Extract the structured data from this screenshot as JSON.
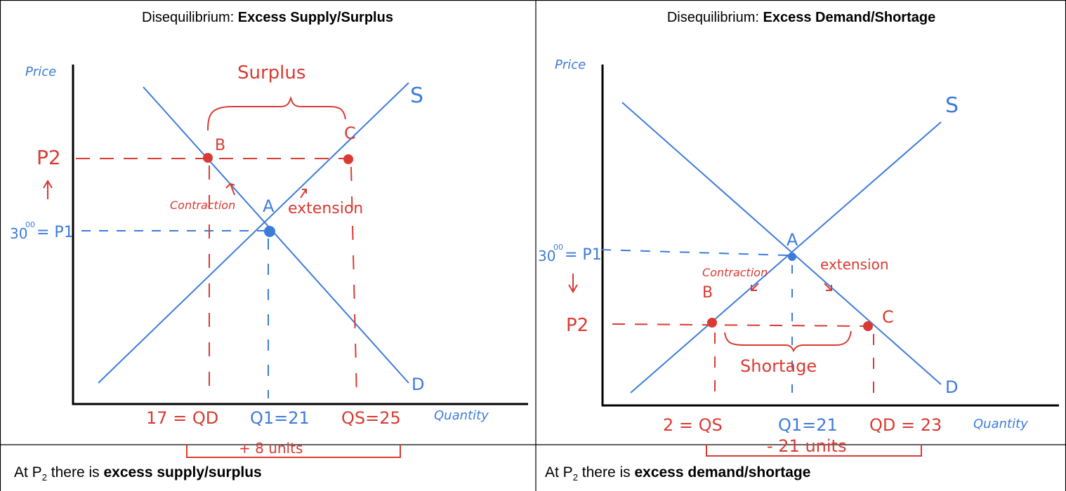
{
  "colors": {
    "curve": "#3d7bd9",
    "annotation": "#d93a32",
    "axis": "#000000"
  },
  "left": {
    "title_prefix": "Disequilibrium: ",
    "title_bold": "Excess Supply/Surplus",
    "axis_y": "Price",
    "axis_x": "Quantity",
    "supply_label": "S",
    "demand_label": "D",
    "point_a": "A",
    "point_b": "B",
    "point_c": "C",
    "p2_label": "P2",
    "p1_label": "30",
    "p1_sup": "00",
    "p1_eq": "= P1",
    "bracket_label": "Surplus",
    "contraction": "Contraction",
    "extension": "extension",
    "qd_label": "17 = QD",
    "q1_label": "Q1=21",
    "qs_label": "QS=25",
    "units_label": "+ 8 units",
    "conclusion_prefix": "At P",
    "conclusion_sub": "2",
    "conclusion_mid": " there is ",
    "conclusion_bold": "excess supply/surplus"
  },
  "right": {
    "title_prefix": "Disequilibrium: ",
    "title_bold": "Excess Demand/Shortage",
    "axis_y": "Price",
    "axis_x": "Quantity",
    "supply_label": "S",
    "demand_label": "D",
    "point_a": "A",
    "point_b": "B",
    "point_c": "C",
    "p2_label": "P2",
    "p1_label": "30",
    "p1_sup": "00",
    "p1_eq": "= P1",
    "bracket_label": "Shortage",
    "contraction": "Contraction",
    "extension": "extension",
    "qs_label": "2 = QS",
    "q1_label": "Q1=21",
    "qd_label": "QD = 23",
    "units_label": "- 21 units",
    "conclusion_prefix": "At P",
    "conclusion_sub": "2",
    "conclusion_mid": " there is ",
    "conclusion_bold": "excess demand/shortage"
  }
}
